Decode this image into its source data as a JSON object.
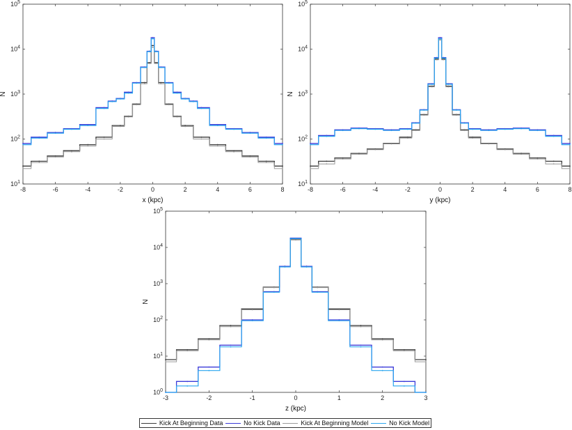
{
  "legend": {
    "items": [
      {
        "label": "Kick At Beginning Data",
        "color": "#3a3a3a"
      },
      {
        "label": "No Kick Data",
        "color": "#3b3bd9"
      },
      {
        "label": "Kick At Beginning Model",
        "color": "#9a9a9a"
      },
      {
        "label": "No Kick Model",
        "color": "#2aa6ef"
      }
    ]
  },
  "chart_data": [
    {
      "type": "line",
      "title": "",
      "xlabel": "x (kpc)",
      "ylabel": "N",
      "xlim": [
        -8,
        8
      ],
      "ylim": [
        10,
        100000
      ],
      "yscale": "log",
      "xticks": [
        -8,
        -6,
        -4,
        -2,
        0,
        2,
        4,
        6,
        8
      ],
      "yticks": [
        {
          "value": 10,
          "label": "10^1"
        },
        {
          "value": 100,
          "label": "10^2"
        },
        {
          "value": 1000,
          "label": "10^3"
        },
        {
          "value": 10000,
          "label": "10^4"
        },
        {
          "value": 100000,
          "label": "10^5"
        }
      ],
      "series": [
        {
          "name": "Kick At Beginning Data",
          "x": [
            -8,
            -7,
            -6,
            -5,
            -4,
            -3,
            -2,
            -1.5,
            -1,
            -0.5,
            -0.2,
            0,
            0.2,
            0.5,
            1,
            1.5,
            2,
            3,
            4,
            5,
            6,
            7,
            8
          ],
          "y": [
            25,
            32,
            42,
            55,
            75,
            110,
            200,
            320,
            600,
            1800,
            5000,
            12000,
            5000,
            1800,
            600,
            320,
            200,
            110,
            75,
            55,
            42,
            32,
            25
          ]
        },
        {
          "name": "No Kick Data",
          "x": [
            -8,
            -7,
            -6,
            -5,
            -4,
            -3,
            -2.5,
            -2,
            -1.5,
            -1,
            -0.5,
            -0.2,
            0,
            0.2,
            0.5,
            1,
            1.5,
            2,
            2.5,
            3,
            4,
            5,
            6,
            7,
            8
          ],
          "y": [
            80,
            110,
            140,
            170,
            210,
            500,
            700,
            800,
            1100,
            1800,
            4000,
            9000,
            18000,
            9000,
            4000,
            1800,
            1100,
            800,
            700,
            500,
            210,
            170,
            140,
            110,
            80
          ]
        },
        {
          "name": "Kick At Beginning Model",
          "x": [
            -8,
            -7,
            -6,
            -5,
            -4,
            -3,
            -2,
            -1.5,
            -1,
            -0.5,
            -0.2,
            0,
            0.2,
            0.5,
            1,
            1.5,
            2,
            3,
            4,
            5,
            6,
            7,
            8
          ],
          "y": [
            22,
            30,
            40,
            52,
            70,
            100,
            190,
            310,
            580,
            1700,
            4800,
            11000,
            4800,
            1700,
            580,
            310,
            190,
            100,
            70,
            52,
            40,
            30,
            22
          ]
        },
        {
          "name": "No Kick Model",
          "x": [
            -8,
            -7,
            -6,
            -5,
            -4,
            -3,
            -2.5,
            -2,
            -1.5,
            -1,
            -0.5,
            -0.2,
            0,
            0.2,
            0.5,
            1,
            1.5,
            2,
            2.5,
            3,
            4,
            5,
            6,
            7,
            8
          ],
          "y": [
            75,
            105,
            135,
            165,
            200,
            480,
            680,
            780,
            1050,
            1750,
            3900,
            8800,
            17000,
            8800,
            3900,
            1750,
            1050,
            780,
            680,
            480,
            200,
            165,
            135,
            105,
            75
          ]
        }
      ]
    },
    {
      "type": "line",
      "title": "",
      "xlabel": "y (kpc)",
      "ylabel": "N",
      "xlim": [
        -8,
        8
      ],
      "ylim": [
        10,
        100000
      ],
      "yscale": "log",
      "xticks": [
        -8,
        -6,
        -4,
        -2,
        0,
        2,
        4,
        6,
        8
      ],
      "yticks": [
        {
          "value": 10,
          "label": "10^1"
        },
        {
          "value": 100,
          "label": "10^2"
        },
        {
          "value": 1000,
          "label": "10^3"
        },
        {
          "value": 10000,
          "label": "10^4"
        },
        {
          "value": 100000,
          "label": "10^5"
        }
      ],
      "series": [
        {
          "name": "Kick At Beginning Data",
          "x": [
            -8,
            -7,
            -6,
            -5,
            -4,
            -3,
            -2,
            -1.5,
            -1,
            -0.5,
            -0.2,
            0,
            0.2,
            0.5,
            1,
            1.5,
            2,
            3,
            4,
            5,
            6,
            7,
            8
          ],
          "y": [
            25,
            32,
            38,
            48,
            60,
            80,
            110,
            160,
            350,
            1500,
            6000,
            17000,
            6000,
            1500,
            350,
            160,
            110,
            80,
            60,
            48,
            38,
            32,
            25
          ]
        },
        {
          "name": "No Kick Data",
          "x": [
            -8,
            -7,
            -6,
            -5,
            -4,
            -3,
            -2,
            -1.5,
            -1,
            -0.5,
            -0.2,
            0,
            0.2,
            0.5,
            1,
            1.5,
            2,
            3,
            4,
            5,
            6,
            7,
            8
          ],
          "y": [
            80,
            120,
            160,
            175,
            170,
            160,
            170,
            230,
            450,
            1700,
            6500,
            18000,
            6500,
            1700,
            450,
            230,
            170,
            160,
            170,
            175,
            160,
            120,
            80
          ]
        },
        {
          "name": "Kick At Beginning Model",
          "x": [
            -8,
            -7,
            -6,
            -5,
            -4,
            -3,
            -2,
            -1.5,
            -1,
            -0.5,
            -0.2,
            0,
            0.2,
            0.5,
            1,
            1.5,
            2,
            3,
            4,
            5,
            6,
            7,
            8
          ],
          "y": [
            22,
            28,
            36,
            46,
            58,
            78,
            105,
            155,
            340,
            1450,
            5800,
            16000,
            5800,
            1450,
            340,
            155,
            105,
            78,
            58,
            46,
            36,
            28,
            22
          ]
        },
        {
          "name": "No Kick Model",
          "x": [
            -8,
            -7,
            -6,
            -5,
            -4,
            -3,
            -2,
            -1.5,
            -1,
            -0.5,
            -0.2,
            0,
            0.2,
            0.5,
            1,
            1.5,
            2,
            3,
            4,
            5,
            6,
            7,
            8
          ],
          "y": [
            75,
            115,
            155,
            170,
            165,
            155,
            165,
            225,
            440,
            1650,
            6300,
            17000,
            6300,
            1650,
            440,
            225,
            165,
            155,
            165,
            170,
            155,
            115,
            75
          ]
        }
      ]
    },
    {
      "type": "line",
      "title": "",
      "xlabel": "z (kpc)",
      "ylabel": "N",
      "xlim": [
        -3,
        3
      ],
      "ylim": [
        1,
        100000
      ],
      "yscale": "log",
      "xticks": [
        -3,
        -2,
        -1,
        0,
        1,
        2,
        3
      ],
      "yticks": [
        {
          "value": 1,
          "label": "10^0"
        },
        {
          "value": 10,
          "label": "10^1"
        },
        {
          "value": 100,
          "label": "10^2"
        },
        {
          "value": 1000,
          "label": "10^3"
        },
        {
          "value": 10000,
          "label": "10^4"
        },
        {
          "value": 100000,
          "label": "10^5"
        }
      ],
      "series": [
        {
          "name": "Kick At Beginning Data",
          "x": [
            -3,
            -2.5,
            -2,
            -1.5,
            -1,
            -0.5,
            -0.25,
            0,
            0.25,
            0.5,
            1,
            1.5,
            2,
            2.5,
            3
          ],
          "y": [
            8,
            15,
            30,
            70,
            200,
            800,
            3000,
            17000,
            3000,
            800,
            200,
            70,
            30,
            15,
            8
          ]
        },
        {
          "name": "No Kick Data",
          "x": [
            -3,
            -2.5,
            -2,
            -1.5,
            -1,
            -0.5,
            -0.25,
            0,
            0.25,
            0.5,
            1,
            1.5,
            2,
            2.5,
            3
          ],
          "y": [
            1,
            2,
            5,
            20,
            100,
            600,
            3000,
            18000,
            3000,
            600,
            100,
            20,
            5,
            2,
            1
          ]
        },
        {
          "name": "Kick At Beginning Model",
          "x": [
            -3,
            -2.5,
            -2,
            -1.5,
            -1,
            -0.5,
            -0.25,
            0,
            0.25,
            0.5,
            1,
            1.5,
            2,
            2.5,
            3
          ],
          "y": [
            7,
            14,
            28,
            65,
            190,
            780,
            2900,
            16000,
            2900,
            780,
            190,
            65,
            28,
            14,
            7
          ]
        },
        {
          "name": "No Kick Model",
          "x": [
            -3,
            -2.5,
            -2,
            -1.5,
            -1,
            -0.5,
            -0.25,
            0,
            0.25,
            0.5,
            1,
            1.5,
            2,
            2.5,
            3
          ],
          "y": [
            1,
            1.5,
            4,
            18,
            95,
            580,
            2900,
            17500,
            2900,
            580,
            95,
            18,
            4,
            1.5,
            1
          ]
        }
      ]
    }
  ]
}
